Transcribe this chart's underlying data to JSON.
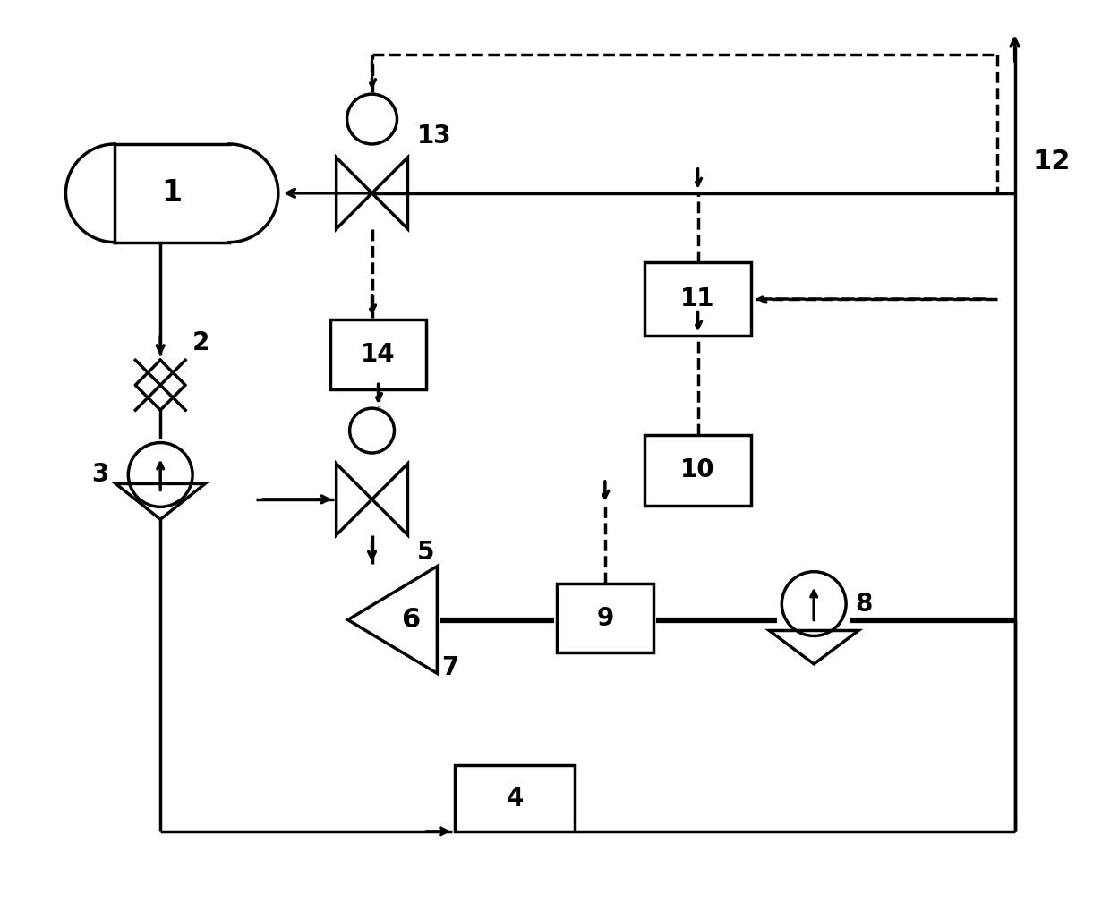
{
  "bg_color": "#ffffff",
  "lw": 2.5,
  "lw_thick": 4.5,
  "lw_dash": 2.5,
  "fig_w": 12.4,
  "fig_h": 10.29,
  "dpi": 100
}
